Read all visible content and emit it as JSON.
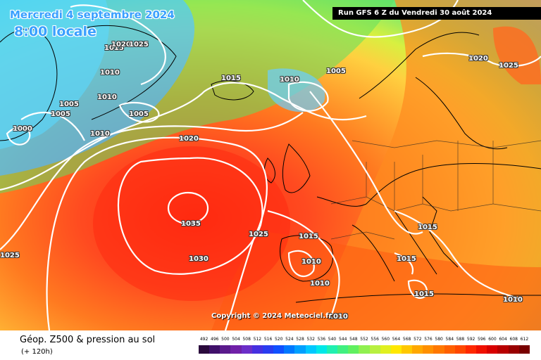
{
  "header": {
    "date": "Mercredi 4 septembre 2024",
    "time": "8:00 locale",
    "run": "Run GFS 6 Z du Vendredi 30 août 2024"
  },
  "copyright": "Copyright © 2024 Meteociel.fr",
  "footer": {
    "title": "Géop. Z500 & pression au sol",
    "subtitle": "(+ 120h)"
  },
  "isobar_labels": [
    "1015",
    "1020",
    "1025",
    "1010",
    "1005",
    "1015",
    "1010",
    "1005",
    "1010",
    "1005",
    "1005",
    "1000",
    "1010",
    "1020",
    "1020",
    "1025",
    "1035",
    "1025",
    "1015",
    "1030",
    "1010",
    "1010",
    "1015",
    "1015",
    "1015",
    "1010",
    "1010",
    "1025"
  ],
  "scale": {
    "labels": [
      "492",
      "496",
      "500",
      "504",
      "508",
      "512",
      "516",
      "520",
      "524",
      "528",
      "532",
      "536",
      "540",
      "544",
      "548",
      "552",
      "556",
      "560",
      "564",
      "568",
      "572",
      "576",
      "580",
      "584",
      "588",
      "592",
      "596",
      "600",
      "604",
      "608",
      "612"
    ],
    "colors": [
      "#2a0a3c",
      "#40106a",
      "#5a1a8c",
      "#7020a8",
      "#6b2ec8",
      "#4630e0",
      "#2a3cf0",
      "#1050ff",
      "#0078ff",
      "#00a0ff",
      "#00c8ff",
      "#00e8e8",
      "#20f0b0",
      "#40f080",
      "#60f060",
      "#90f050",
      "#b8f040",
      "#e0f020",
      "#ffe800",
      "#ffc800",
      "#ffa800",
      "#ff9000",
      "#ff7800",
      "#ff6000",
      "#ff4800",
      "#ff2800",
      "#f01000",
      "#d80000",
      "#b80000",
      "#980000",
      "#780000"
    ]
  }
}
